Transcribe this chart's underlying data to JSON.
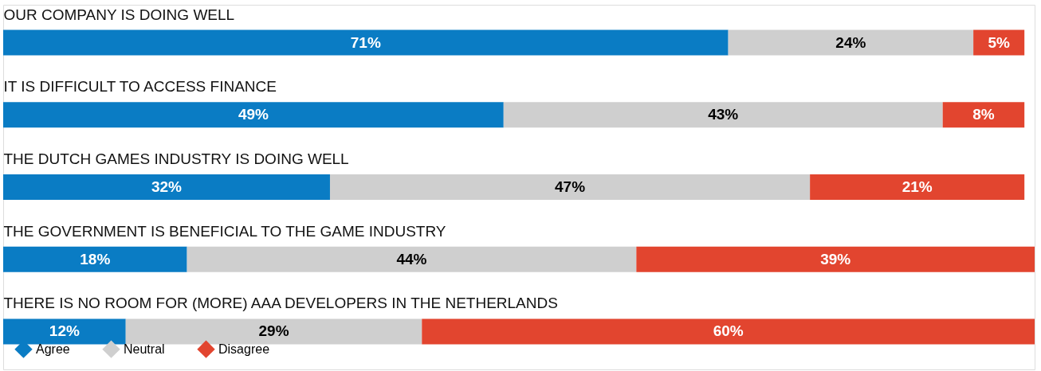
{
  "chart_data": {
    "type": "bar",
    "orientation": "horizontal",
    "stacked": true,
    "legend": "bottom left",
    "grid": false,
    "tick_labels": "y",
    "categories": [
      "OUR COMPANY IS DOING WELL",
      "IT IS DIFFICULT TO ACCESS FINANCE",
      "THE DUTCH GAMES INDUSTRY IS DOING WELL",
      "THE GOVERNMENT IS BENEFICIAL TO THE GAME INDUSTRY",
      "THERE IS NO ROOM FOR (MORE) AAA DEVELOPERS IN THE NETHERLANDS"
    ],
    "series": [
      {
        "name": "Agree",
        "color": "#0a7cc4",
        "values": [
          71,
          49,
          32,
          18,
          12
        ],
        "value_labels": [
          "71%",
          "49%",
          "32%",
          "18%",
          "12%"
        ]
      },
      {
        "name": "Neutral",
        "color": "#cfcfcf",
        "values": [
          24,
          43,
          47,
          44,
          29
        ],
        "value_labels": [
          "24%",
          "43%",
          "47%",
          "44%",
          "29%"
        ]
      },
      {
        "name": "Disagree",
        "color": "#e2452f",
        "values": [
          5,
          8,
          21,
          39,
          60
        ],
        "value_labels": [
          "5%",
          "8%",
          "21%",
          "39%",
          "60%"
        ]
      }
    ]
  }
}
